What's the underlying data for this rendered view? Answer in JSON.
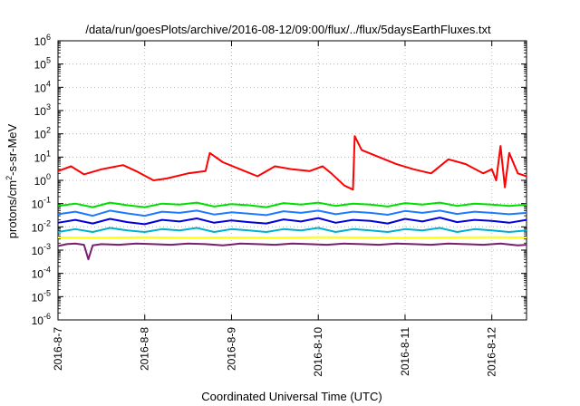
{
  "chart_data": {
    "type": "line",
    "title": "/data/run/goesPlots/archive/2016-08-12/09:00/flux/../flux/5daysEarthFluxes.txt",
    "xlabel": "Coordinated Universal Time (UTC)",
    "ylabel": {
      "base": "protons/cm",
      "sup": "2",
      "rest": "-s-sr-MeV"
    },
    "yscale": "log",
    "ylim": [
      1e-06,
      1000000.0
    ],
    "yticks": [
      {
        "exp": -6,
        "label": "10",
        "sup": "-6"
      },
      {
        "exp": -5,
        "label": "10",
        "sup": "-5"
      },
      {
        "exp": -4,
        "label": "10",
        "sup": "-4"
      },
      {
        "exp": -3,
        "label": "10",
        "sup": "-3"
      },
      {
        "exp": -2,
        "label": "10",
        "sup": "-2"
      },
      {
        "exp": -1,
        "label": "10",
        "sup": "-1"
      },
      {
        "exp": 0,
        "label": "10",
        "sup": "0"
      },
      {
        "exp": 1,
        "label": "10",
        "sup": "1"
      },
      {
        "exp": 2,
        "label": "10",
        "sup": "2"
      },
      {
        "exp": 3,
        "label": "10",
        "sup": "3"
      },
      {
        "exp": 4,
        "label": "10",
        "sup": "4"
      },
      {
        "exp": 5,
        "label": "10",
        "sup": "5"
      },
      {
        "exp": 6,
        "label": "10",
        "sup": "6"
      }
    ],
    "xlim_days": [
      0,
      5.4
    ],
    "xticks": [
      {
        "day": 0,
        "label": "2016-8-7"
      },
      {
        "day": 1,
        "label": "2016-8-8"
      },
      {
        "day": 2,
        "label": "2016-8-9"
      },
      {
        "day": 3,
        "label": "2016-8-10"
      },
      {
        "day": 4,
        "label": "2016-8-11"
      },
      {
        "day": 5,
        "label": "2016-8-12"
      }
    ],
    "grid": true,
    "series": [
      {
        "color": "#7a1f6e",
        "x": [
          0,
          0.1,
          0.2,
          0.3,
          0.35,
          0.4,
          0.5,
          0.7,
          0.9,
          1.1,
          1.3,
          1.5,
          1.7,
          1.9,
          2.1,
          2.3,
          2.5,
          2.7,
          2.9,
          3.1,
          3.3,
          3.5,
          3.7,
          3.9,
          4.1,
          4.3,
          4.5,
          4.7,
          4.9,
          5.1,
          5.3,
          5.4
        ],
        "y": [
          0.0015,
          0.0018,
          0.0019,
          0.0017,
          0.0004,
          0.0016,
          0.0018,
          0.0017,
          0.0019,
          0.0018,
          0.0017,
          0.0019,
          0.0018,
          0.0016,
          0.0019,
          0.0018,
          0.0017,
          0.0019,
          0.0018,
          0.0017,
          0.0019,
          0.0018,
          0.0017,
          0.0019,
          0.0018,
          0.0017,
          0.0019,
          0.0018,
          0.0017,
          0.0019,
          0.0016,
          0.0017
        ]
      },
      {
        "color": "#ffff00",
        "x": [
          0,
          0.5,
          1.0,
          1.5,
          2.0,
          2.5,
          3.0,
          3.5,
          4.0,
          4.5,
          5.0,
          5.4
        ],
        "y": [
          0.0035,
          0.0034,
          0.0036,
          0.0034,
          0.0035,
          0.0034,
          0.0036,
          0.0035,
          0.0034,
          0.0035,
          0.0036,
          0.0035
        ]
      },
      {
        "color": "#00b0d0",
        "x": [
          0,
          0.2,
          0.4,
          0.6,
          0.8,
          1.0,
          1.2,
          1.4,
          1.6,
          1.8,
          2.0,
          2.2,
          2.4,
          2.6,
          2.8,
          3.0,
          3.2,
          3.4,
          3.6,
          3.8,
          4.0,
          4.2,
          4.4,
          4.6,
          4.8,
          5.0,
          5.2,
          5.4
        ],
        "y": [
          0.006,
          0.008,
          0.006,
          0.009,
          0.007,
          0.006,
          0.008,
          0.007,
          0.009,
          0.006,
          0.008,
          0.007,
          0.006,
          0.008,
          0.007,
          0.009,
          0.006,
          0.008,
          0.007,
          0.006,
          0.008,
          0.007,
          0.009,
          0.006,
          0.008,
          0.007,
          0.006,
          0.007
        ]
      },
      {
        "color": "#0000e0",
        "x": [
          0,
          0.2,
          0.4,
          0.6,
          0.8,
          1.0,
          1.2,
          1.4,
          1.6,
          1.8,
          2.0,
          2.2,
          2.4,
          2.6,
          2.8,
          3.0,
          3.2,
          3.4,
          3.6,
          3.8,
          4.0,
          4.2,
          4.4,
          4.6,
          4.8,
          5.0,
          5.2,
          5.4
        ],
        "y": [
          0.015,
          0.02,
          0.014,
          0.022,
          0.016,
          0.013,
          0.02,
          0.017,
          0.023,
          0.015,
          0.019,
          0.016,
          0.014,
          0.021,
          0.017,
          0.024,
          0.015,
          0.02,
          0.018,
          0.014,
          0.022,
          0.017,
          0.025,
          0.016,
          0.02,
          0.018,
          0.015,
          0.02
        ]
      },
      {
        "color": "#1e7bff",
        "x": [
          0,
          0.2,
          0.4,
          0.6,
          0.8,
          1.0,
          1.2,
          1.4,
          1.6,
          1.8,
          2.0,
          2.2,
          2.4,
          2.6,
          2.8,
          3.0,
          3.2,
          3.4,
          3.6,
          3.8,
          4.0,
          4.2,
          4.4,
          4.6,
          4.8,
          5.0,
          5.2,
          5.4
        ],
        "y": [
          0.035,
          0.045,
          0.03,
          0.05,
          0.038,
          0.03,
          0.045,
          0.04,
          0.05,
          0.034,
          0.042,
          0.037,
          0.032,
          0.047,
          0.04,
          0.05,
          0.035,
          0.045,
          0.04,
          0.033,
          0.048,
          0.04,
          0.05,
          0.036,
          0.045,
          0.04,
          0.035,
          0.04
        ]
      },
      {
        "color": "#00e000",
        "x": [
          0,
          0.2,
          0.4,
          0.6,
          0.8,
          1.0,
          1.2,
          1.4,
          1.6,
          1.8,
          2.0,
          2.2,
          2.4,
          2.6,
          2.8,
          3.0,
          3.2,
          3.4,
          3.6,
          3.8,
          4.0,
          4.2,
          4.4,
          4.6,
          4.8,
          5.0,
          5.2,
          5.4
        ],
        "y": [
          0.08,
          0.1,
          0.07,
          0.11,
          0.085,
          0.07,
          0.1,
          0.09,
          0.11,
          0.075,
          0.095,
          0.085,
          0.07,
          0.105,
          0.09,
          0.11,
          0.08,
          0.1,
          0.09,
          0.075,
          0.105,
          0.09,
          0.11,
          0.08,
          0.1,
          0.09,
          0.08,
          0.09
        ]
      },
      {
        "color": "#ff0000",
        "x": [
          0,
          0.15,
          0.3,
          0.5,
          0.75,
          0.9,
          1.1,
          1.25,
          1.5,
          1.7,
          1.75,
          1.9,
          2.1,
          2.3,
          2.5,
          2.7,
          2.9,
          3.05,
          3.15,
          3.3,
          3.4,
          3.42,
          3.5,
          3.7,
          3.9,
          4.1,
          4.3,
          4.5,
          4.7,
          4.9,
          5.0,
          5.05,
          5.1,
          5.15,
          5.2,
          5.3,
          5.4
        ],
        "y": [
          2.5,
          4.0,
          1.8,
          3.0,
          4.5,
          2.5,
          1.0,
          1.2,
          2.0,
          2.5,
          15,
          6,
          3.0,
          1.5,
          4.0,
          3.0,
          2.5,
          4.0,
          2.0,
          0.6,
          0.4,
          80,
          20,
          10,
          5.0,
          3.0,
          2.0,
          8.0,
          5.0,
          2.0,
          3.0,
          1.0,
          30,
          0.5,
          15,
          2.0,
          1.5
        ]
      }
    ]
  }
}
